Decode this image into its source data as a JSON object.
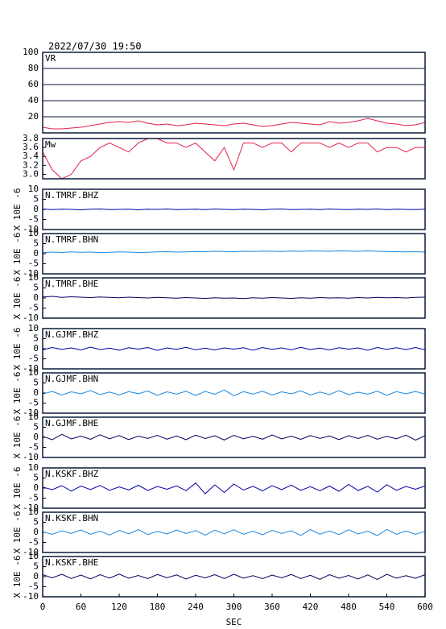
{
  "title": "2022/07/30 19:50",
  "x": [
    0,
    15,
    30,
    45,
    60,
    75,
    90,
    105,
    120,
    135,
    150,
    165,
    180,
    195,
    210,
    225,
    240,
    255,
    270,
    285,
    300,
    315,
    330,
    345,
    360,
    375,
    390,
    405,
    420,
    435,
    450,
    465,
    480,
    495,
    510,
    525,
    540,
    555,
    570,
    585,
    600
  ],
  "chart_data": [
    {
      "type": "line",
      "title": "VR",
      "color": "#e0204a",
      "ylim": [
        0,
        100
      ],
      "yticks": [
        20,
        40,
        60,
        80,
        100
      ],
      "grid": true,
      "xlim": [
        0,
        600
      ],
      "values": [
        7,
        5,
        5,
        6,
        7,
        9,
        11,
        13,
        14,
        13,
        15,
        12,
        10,
        11,
        9,
        10,
        12,
        11,
        10,
        9,
        11,
        12,
        10,
        8,
        9,
        11,
        13,
        12,
        11,
        10,
        14,
        12,
        13,
        15,
        18,
        15,
        12,
        11,
        9,
        10,
        13
      ]
    },
    {
      "type": "line",
      "title": "Mw",
      "color": "#e0204a",
      "ylim": [
        2.9,
        3.8
      ],
      "yticks": [
        {
          "value": 3,
          "label": "3.0"
        },
        3.2,
        3.4,
        3.6,
        3.8
      ],
      "grid": false,
      "xlim": [
        0,
        600
      ],
      "values": [
        3.5,
        3.1,
        2.9,
        3.0,
        3.3,
        3.4,
        3.6,
        3.7,
        3.6,
        3.5,
        3.7,
        3.8,
        3.8,
        3.7,
        3.7,
        3.6,
        3.7,
        3.5,
        3.3,
        3.6,
        3.1,
        3.7,
        3.7,
        3.6,
        3.7,
        3.7,
        3.5,
        3.7,
        3.7,
        3.7,
        3.6,
        3.7,
        3.6,
        3.7,
        3.7,
        3.5,
        3.6,
        3.6,
        3.5,
        3.6,
        3.6
      ]
    },
    {
      "type": "line",
      "title": "N.TMRF.BHZ",
      "ylabel": "X 10E -6",
      "color": "#0000aa",
      "ylim": [
        -10,
        10
      ],
      "yticks": [
        -10,
        -5,
        0,
        5,
        10
      ],
      "xlim": [
        0,
        600
      ],
      "values": [
        0.2,
        -0.1,
        0.1,
        0,
        -0.2,
        0.1,
        0.2,
        -0.1,
        0,
        0.1,
        -0.2,
        0.1,
        0,
        0.2,
        -0.1,
        0,
        0.1,
        -0.1,
        0.2,
        0,
        -0.1,
        0.1,
        0,
        -0.2,
        0.1,
        0.2,
        -0.1,
        0,
        0.1,
        -0.1,
        0.2,
        0,
        -0.1,
        0.1,
        0,
        0.2,
        -0.1,
        0.1,
        0,
        -0.1,
        0.1
      ]
    },
    {
      "type": "line",
      "title": "N.TMRF.BHN",
      "ylabel": "X 10E -6",
      "color": "#1a88e0",
      "ylim": [
        -10,
        10
      ],
      "yticks": [
        -10,
        -5,
        0,
        5,
        10
      ],
      "xlim": [
        0,
        600
      ],
      "values": [
        0.5,
        0.8,
        0.6,
        0.9,
        0.7,
        0.8,
        0.6,
        0.7,
        0.9,
        0.8,
        0.6,
        0.7,
        0.9,
        1.0,
        0.8,
        0.9,
        1.1,
        1.0,
        1.2,
        1.1,
        1.0,
        1.2,
        1.1,
        1.3,
        1.2,
        1.1,
        1.3,
        1.2,
        1.4,
        1.3,
        1.2,
        1.4,
        1.3,
        1.2,
        1.4,
        1.2,
        1.1,
        1.0,
        0.9,
        1.0,
        0.8
      ]
    },
    {
      "type": "line",
      "title": "N.TMRF.BHE",
      "ylabel": "X 10E -6",
      "color": "#000060",
      "ylim": [
        -10,
        10
      ],
      "yticks": [
        -10,
        -5,
        0,
        5,
        10
      ],
      "xlim": [
        0,
        600
      ],
      "values": [
        0.5,
        0.8,
        0.3,
        0.6,
        0.4,
        0.2,
        0.5,
        0.3,
        0.1,
        0.4,
        0.2,
        0,
        0.3,
        0.1,
        -0.1,
        0.2,
        0,
        -0.2,
        0.1,
        -0.1,
        0,
        -0.3,
        0.1,
        -0.1,
        0.2,
        0,
        -0.2,
        0.1,
        -0.1,
        0.2,
        0,
        0.1,
        -0.1,
        0.2,
        0,
        0.3,
        0.1,
        0.2,
        0,
        0.3,
        0.4
      ]
    },
    {
      "type": "line",
      "title": "N.GJMF.BHZ",
      "ylabel": "X 10E -6",
      "color": "#0000aa",
      "ylim": [
        -10,
        10
      ],
      "yticks": [
        -10,
        -5,
        0,
        5,
        10
      ],
      "xlim": [
        0,
        600
      ],
      "values": [
        -0.5,
        0.6,
        -0.3,
        0.4,
        -0.6,
        0.8,
        -0.4,
        0.3,
        -0.7,
        0.5,
        -0.2,
        0.6,
        -0.8,
        0.4,
        -0.3,
        0.7,
        -0.5,
        0.3,
        -0.6,
        0.4,
        -0.2,
        0.5,
        -0.7,
        0.6,
        -0.3,
        0.4,
        -0.5,
        0.7,
        -0.4,
        0.3,
        -0.6,
        0.5,
        -0.2,
        0.4,
        -0.7,
        0.6,
        -0.3,
        0.5,
        -0.4,
        0.6,
        -0.5
      ]
    },
    {
      "type": "line",
      "title": "N.GJMF.BHN",
      "ylabel": "X 10E -6",
      "color": "#1a88e0",
      "ylim": [
        -10,
        10
      ],
      "yticks": [
        -10,
        -5,
        0,
        5,
        10
      ],
      "xlim": [
        0,
        600
      ],
      "values": [
        -0.5,
        0.8,
        -1.0,
        0.6,
        -0.4,
        1.2,
        -0.8,
        0.5,
        -0.9,
        0.7,
        -0.3,
        1.0,
        -1.1,
        0.6,
        -0.5,
        0.9,
        -1.2,
        0.8,
        -0.6,
        1.5,
        -1.3,
        0.7,
        -0.5,
        0.9,
        -1.0,
        0.6,
        -0.4,
        1.1,
        -0.9,
        0.5,
        -0.7,
        1.2,
        -0.8,
        0.4,
        -0.6,
        0.9,
        -1.1,
        0.7,
        -0.4,
        0.8,
        -0.6
      ]
    },
    {
      "type": "line",
      "title": "N.GJMF.BHE",
      "ylabel": "X 10E -6",
      "color": "#000060",
      "ylim": [
        -10,
        10
      ],
      "yticks": [
        -10,
        -5,
        0,
        5,
        10
      ],
      "xlim": [
        0,
        600
      ],
      "values": [
        0.5,
        -1.2,
        1.5,
        -0.8,
        0.6,
        -1.0,
        1.3,
        -0.7,
        0.9,
        -1.1,
        0.6,
        -0.5,
        1.0,
        -0.9,
        0.7,
        -1.2,
        1.1,
        -0.6,
        0.8,
        -1.3,
        1.0,
        -0.7,
        0.5,
        -0.9,
        1.2,
        -0.8,
        0.6,
        -1.0,
        0.9,
        -0.5,
        0.7,
        -1.1,
        0.8,
        -0.6,
        1.0,
        -0.9,
        0.5,
        -0.7,
        1.1,
        -1.4,
        0.8
      ]
    },
    {
      "type": "line",
      "title": "N.KSKF.BHZ",
      "ylabel": "X 10E -6",
      "color": "#0000aa",
      "ylim": [
        -10,
        10
      ],
      "yticks": [
        -10,
        -5,
        0,
        5,
        10
      ],
      "xlim": [
        0,
        600
      ],
      "values": [
        0.5,
        -0.8,
        1.2,
        -1.5,
        1.0,
        -0.7,
        1.3,
        -1.1,
        0.6,
        -0.9,
        1.4,
        -1.2,
        0.8,
        -0.6,
        1.1,
        -1.3,
        2.5,
        -2.8,
        1.6,
        -2.2,
        2.0,
        -1.0,
        0.9,
        -1.4,
        1.2,
        -0.8,
        1.5,
        -1.1,
        0.7,
        -1.3,
        1.0,
        -1.6,
        1.8,
        -1.2,
        0.9,
        -2.0,
        1.7,
        -1.1,
        0.8,
        -0.6,
        1.0
      ]
    },
    {
      "type": "line",
      "title": "N.KSKF.BHN",
      "ylabel": "X 10E -6",
      "color": "#1a88e0",
      "ylim": [
        -10,
        10
      ],
      "yticks": [
        -10,
        -5,
        0,
        5,
        10
      ],
      "xlim": [
        0,
        600
      ],
      "values": [
        0.3,
        -1.0,
        0.8,
        -0.5,
        1.2,
        -0.9,
        0.6,
        -1.3,
        1.0,
        -0.7,
        1.4,
        -1.1,
        0.5,
        -0.8,
        1.2,
        -0.6,
        0.9,
        -1.4,
        1.1,
        -0.7,
        1.3,
        -0.9,
        0.6,
        -1.2,
        1.0,
        -0.5,
        0.8,
        -1.5,
        1.4,
        -0.9,
        0.7,
        -1.1,
        1.3,
        -0.8,
        0.6,
        -1.6,
        1.5,
        -1.0,
        0.7,
        -0.9,
        0.5
      ]
    },
    {
      "type": "line",
      "title": "N.KSKF.BHE",
      "ylabel": "X 10E -6",
      "color": "#000060",
      "ylim": [
        -10,
        10
      ],
      "yticks": [
        -10,
        -5,
        0,
        5,
        10
      ],
      "xlim": [
        0,
        600
      ],
      "xlabel": "SEC",
      "xticks": [
        0,
        60,
        120,
        180,
        240,
        300,
        360,
        420,
        480,
        540,
        600
      ],
      "values": [
        1.0,
        -0.6,
        1.2,
        -0.9,
        0.8,
        -1.1,
        1.0,
        -0.7,
        1.3,
        -0.8,
        0.6,
        -1.0,
        1.1,
        -0.5,
        0.9,
        -1.2,
        0.7,
        -0.6,
        1.0,
        -0.9,
        1.2,
        -0.7,
        0.5,
        -1.0,
        0.8,
        -0.6,
        1.1,
        -0.9,
        0.7,
        -1.3,
        1.0,
        -0.8,
        0.6,
        -1.1,
        0.9,
        -1.4,
        1.2,
        -0.7,
        0.5,
        -0.8,
        1.0
      ]
    }
  ]
}
